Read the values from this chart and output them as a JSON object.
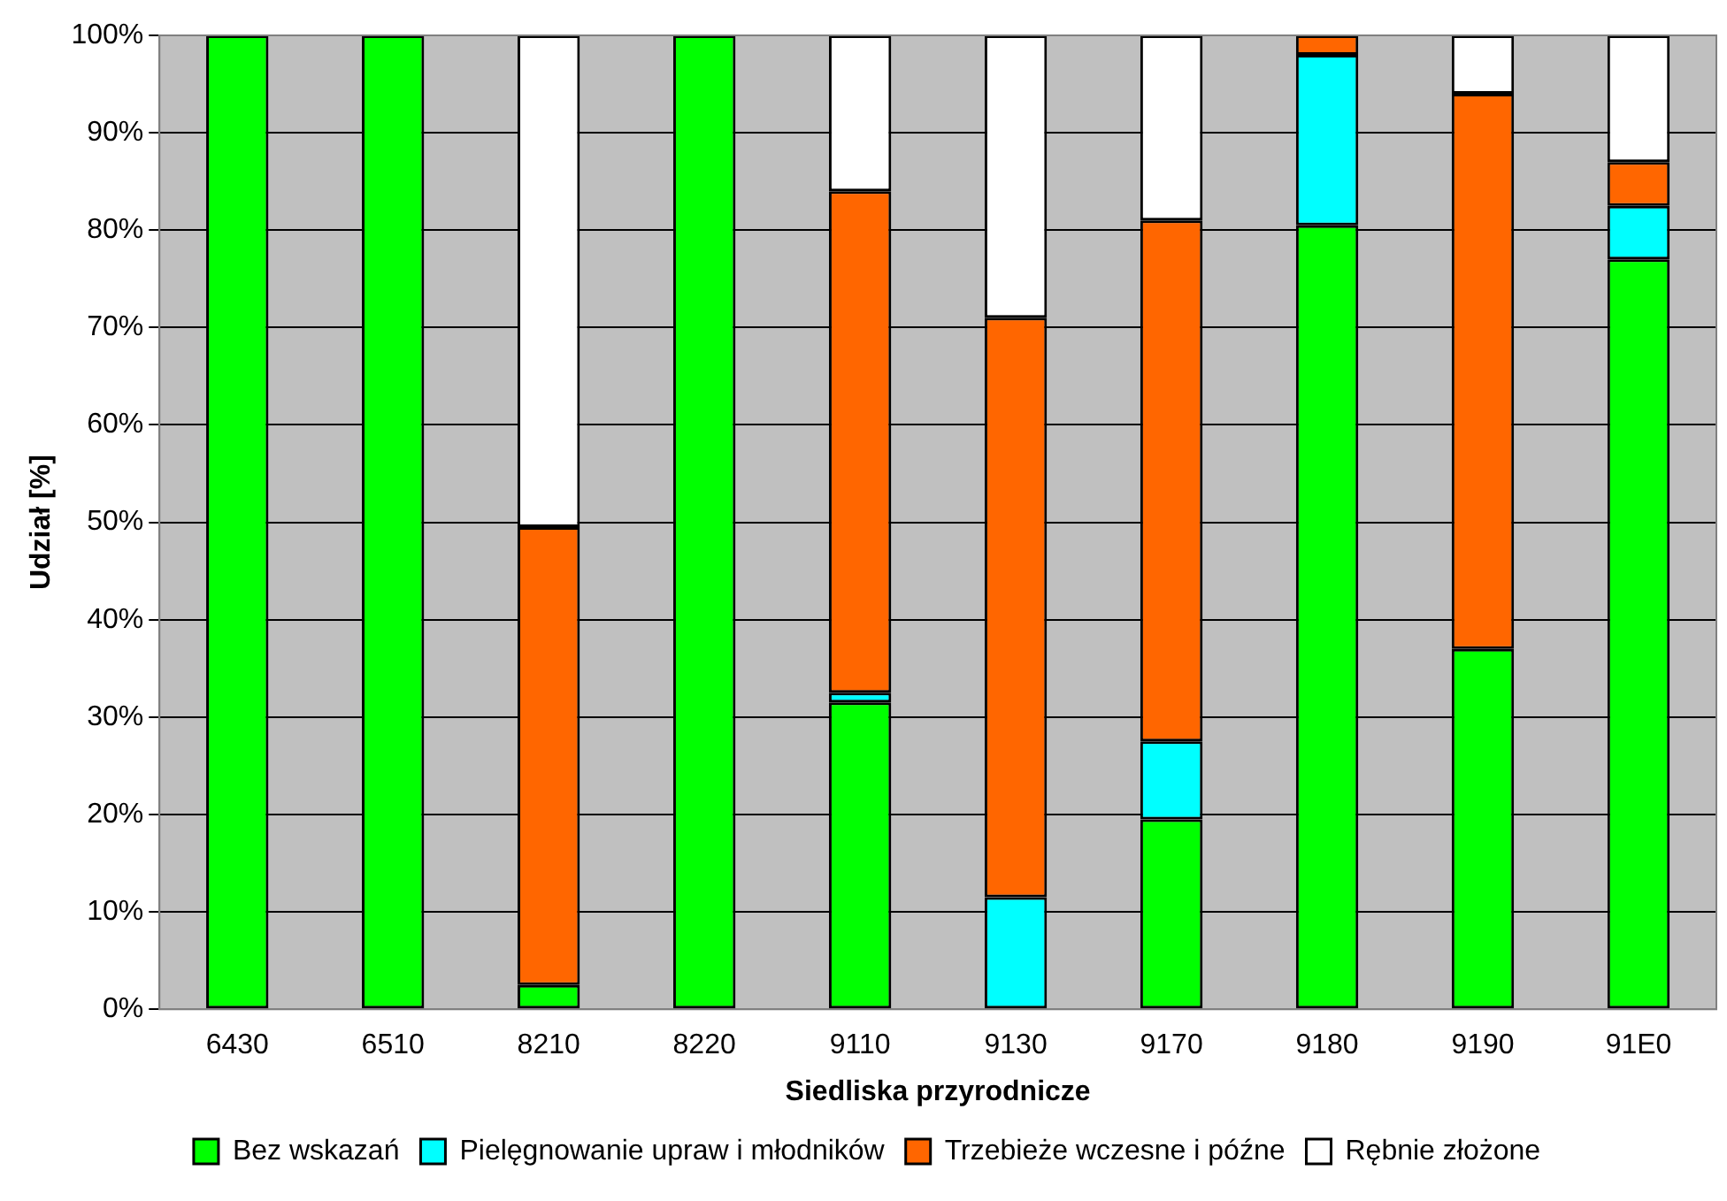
{
  "chart_data": {
    "type": "bar",
    "stacked": true,
    "xlabel": "Siedliska przyrodnicze",
    "ylabel": "Udział [%]",
    "categories": [
      "6430",
      "6510",
      "8210",
      "8220",
      "9110",
      "9130",
      "9170",
      "9180",
      "9190",
      "91E0"
    ],
    "series": [
      {
        "name": "Bez wskazań",
        "color": "#00ff00",
        "values": [
          100,
          100,
          2.5,
          100,
          31.5,
          0,
          19.5,
          80.5,
          37,
          77
        ]
      },
      {
        "name": "Pielęgnowanie upraw i młodników",
        "color": "#00ffff",
        "values": [
          0,
          0,
          0,
          0,
          1,
          11.5,
          8,
          17.5,
          0,
          5.5
        ]
      },
      {
        "name": "Trzebieże wczesne i późne",
        "color": "#ff6600",
        "values": [
          0,
          0,
          47,
          0,
          51.5,
          59.5,
          53.5,
          2,
          57,
          4.5
        ]
      },
      {
        "name": "Rębnie złożone",
        "color": "#ffffff",
        "values": [
          0,
          0,
          50.5,
          0,
          16,
          29,
          19,
          0,
          6,
          13
        ]
      }
    ],
    "ylim": [
      0,
      100
    ],
    "yticks": [
      {
        "value": 0,
        "label": "0%"
      },
      {
        "value": 10,
        "label": "10%"
      },
      {
        "value": 20,
        "label": "20%"
      },
      {
        "value": 30,
        "label": "30%"
      },
      {
        "value": 40,
        "label": "40%"
      },
      {
        "value": 50,
        "label": "50%"
      },
      {
        "value": 60,
        "label": "60%"
      },
      {
        "value": 70,
        "label": "70%"
      },
      {
        "value": 80,
        "label": "80%"
      },
      {
        "value": 90,
        "label": "90%"
      },
      {
        "value": 100,
        "label": "100%"
      }
    ],
    "grid": "y",
    "legend": "bottom"
  }
}
